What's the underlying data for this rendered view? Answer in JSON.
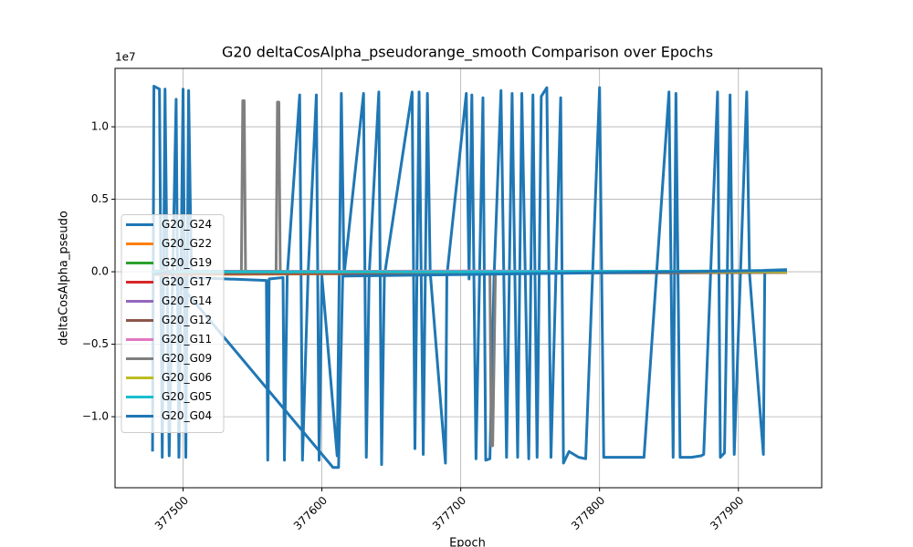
{
  "chart_data": {
    "type": "line",
    "title": "G20 deltaCosAlpha_pseudorange_smooth Comparison over Epochs",
    "x_label": "Epoch",
    "y_label": "deltaCosAlpha_pseudo",
    "y_offset_label": "1e7",
    "xlim": [
      377451,
      377960
    ],
    "ylim": [
      -14900000,
      14030000
    ],
    "xticks": [
      377500,
      377600,
      377700,
      377800,
      377900
    ],
    "yticks": [
      {
        "value": -10000000,
        "label": "−1.0"
      },
      {
        "value": -5000000,
        "label": "−0.5"
      },
      {
        "value": 0,
        "label": "0.0"
      },
      {
        "value": 5000000,
        "label": "0.5"
      },
      {
        "value": 10000000,
        "label": "1.0"
      }
    ],
    "grid": true,
    "legend": "center left",
    "series": [
      {
        "name": "G20_G24",
        "color": "#1f77b4",
        "x": [
          377478,
          377479,
          377483,
          377485,
          377487,
          377490,
          377495,
          377497,
          377500,
          377502,
          377504,
          377506,
          377560,
          377561,
          377562,
          377572,
          377573,
          377575,
          377584,
          377586,
          377590,
          377596,
          377598,
          377600,
          377611,
          377614,
          377616,
          377630,
          377632,
          377634,
          377641,
          377643,
          377645,
          377665,
          377667,
          377670,
          377673,
          377676,
          377678,
          377689,
          377690,
          377704,
          377706,
          377708,
          377711,
          377716,
          377718,
          377721,
          377724,
          377729,
          377733,
          377737,
          377741,
          377744,
          377749,
          377752,
          377755,
          377758,
          377762,
          377765,
          377772,
          377774,
          377778,
          377785,
          377790,
          377800,
          377803,
          377820,
          377832,
          377850,
          377853,
          377855,
          377858,
          377866,
          377873,
          377875,
          377885,
          377887,
          377890,
          377894,
          377897,
          377906,
          377908,
          377918,
          377919,
          377935
        ],
        "values": [
          -12400000,
          12800000,
          12600000,
          -12800000,
          12600000,
          -12700000,
          11900000,
          -12800000,
          12600000,
          -12800000,
          12500000,
          -400000,
          -600000,
          -13000000,
          -500000,
          -400000,
          -13000000,
          -300000,
          12200000,
          -13000000,
          -300000,
          12200000,
          -13000000,
          -300000,
          -12700000,
          12300000,
          -200000,
          12300000,
          -12800000,
          -300000,
          12400000,
          -13300000,
          -300000,
          12400000,
          -12200000,
          12400000,
          -12600000,
          12300000,
          0,
          -13200000,
          -300000,
          12300000,
          -500000,
          12200000,
          -12900000,
          12000000,
          -13000000,
          -12900000,
          -400000,
          12500000,
          -12800000,
          12300000,
          -12800000,
          12300000,
          -12900000,
          12200000,
          -12800000,
          12100000,
          12700000,
          -12800000,
          12000000,
          -13200000,
          -12400000,
          -12800000,
          -12900000,
          12700000,
          -12800000,
          -12800000,
          -12800000,
          12400000,
          -12800000,
          12300000,
          -12800000,
          -12800000,
          -12700000,
          -12600000,
          12400000,
          -12800000,
          -12500000,
          12200000,
          -12600000,
          12400000,
          -100000,
          -12600000,
          100000,
          150000
        ]
      },
      {
        "name": "G20_G22",
        "color": "#ff7f0e",
        "x": [
          377478,
          377700,
          377935
        ],
        "values": [
          -200000,
          -100000,
          0
        ]
      },
      {
        "name": "G20_G19",
        "color": "#2ca02c",
        "x": [
          377478,
          377700,
          377935
        ],
        "values": [
          -100000,
          -50000,
          50000
        ]
      },
      {
        "name": "G20_G17",
        "color": "#d62728",
        "x": [
          377478,
          377700,
          377935
        ],
        "values": [
          0,
          0,
          0
        ]
      },
      {
        "name": "G20_G14",
        "color": "#9467bd",
        "x": [
          377478,
          377700,
          377935
        ],
        "values": [
          50000,
          0,
          50000
        ]
      },
      {
        "name": "G20_G12",
        "color": "#8c564b",
        "x": [
          377478,
          377700,
          377935
        ],
        "values": [
          -150000,
          -100000,
          -50000
        ]
      },
      {
        "name": "G20_G11",
        "color": "#e377c2",
        "x": [
          377478,
          377700,
          377935
        ],
        "values": [
          0,
          50000,
          0
        ]
      },
      {
        "name": "G20_G09",
        "color": "#7f7f7f",
        "x": [
          377478,
          377542,
          377543,
          377544,
          377545,
          377567,
          377568,
          377569,
          377570,
          377721,
          377722,
          377723,
          377725,
          377935
        ],
        "values": [
          0,
          0,
          11800000,
          11800000,
          0,
          0,
          11700000,
          11700000,
          0,
          0,
          -12000000,
          -12000000,
          0,
          0
        ]
      },
      {
        "name": "G20_G06",
        "color": "#bcbd22",
        "x": [
          377478,
          377700,
          377935
        ],
        "values": [
          0,
          0,
          0
        ]
      },
      {
        "name": "G20_G05",
        "color": "#17becf",
        "x": [
          377478,
          377700,
          377880,
          377935
        ],
        "values": [
          0,
          0,
          50000,
          100000
        ]
      },
      {
        "name": "G20_G04",
        "color": "#1f77b4",
        "x": [
          377478,
          377490,
          377608,
          377612,
          377615,
          377935
        ],
        "values": [
          -200000,
          0,
          -13500000,
          -13500000,
          -300000,
          100000
        ]
      }
    ]
  }
}
